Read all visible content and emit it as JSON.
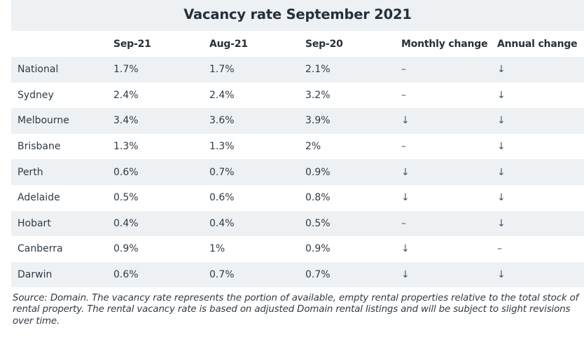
{
  "title": "Vacancy rate September 2021",
  "columns": [
    "",
    "Sep-21",
    "Aug-21",
    "Sep-20",
    "Monthly change",
    "Annual change"
  ],
  "chart_data": {
    "type": "table",
    "title": "Vacancy rate September 2021",
    "columns": [
      "",
      "Sep-21",
      "Aug-21",
      "Sep-20",
      "Monthly change",
      "Annual change"
    ],
    "rows": [
      [
        "National",
        "1.7%",
        "1.7%",
        "2.1%",
        "–",
        "↓"
      ],
      [
        "Sydney",
        "2.4%",
        "2.4%",
        "3.2%",
        "–",
        "↓"
      ],
      [
        "Melbourne",
        "3.4%",
        "3.6%",
        "3.9%",
        "↓",
        "↓"
      ],
      [
        "Brisbane",
        "1.3%",
        "1.3%",
        "2%",
        "–",
        "↓"
      ],
      [
        "Perth",
        "0.6%",
        "0.7%",
        "0.9%",
        "↓",
        "↓"
      ],
      [
        "Adelaide",
        "0.5%",
        "0.6%",
        "0.8%",
        "↓",
        "↓"
      ],
      [
        "Hobart",
        "0.4%",
        "0.4%",
        "0.5%",
        "–",
        "↓"
      ],
      [
        "Canberra",
        "0.9%",
        "1%",
        "0.9%",
        "↓",
        "–"
      ],
      [
        "Darwin",
        "0.6%",
        "0.7%",
        "0.7%",
        "↓",
        "↓"
      ]
    ]
  },
  "source": "Source: Domain. The vacancy rate represents the portion of available, empty rental properties relative to the total stock of rental property. The rental vacancy rate is based on adjusted Domain rental listings and will be subject to slight revisions over time.",
  "colors": {
    "band": "#eef1f3",
    "text": "#2f3a44"
  }
}
